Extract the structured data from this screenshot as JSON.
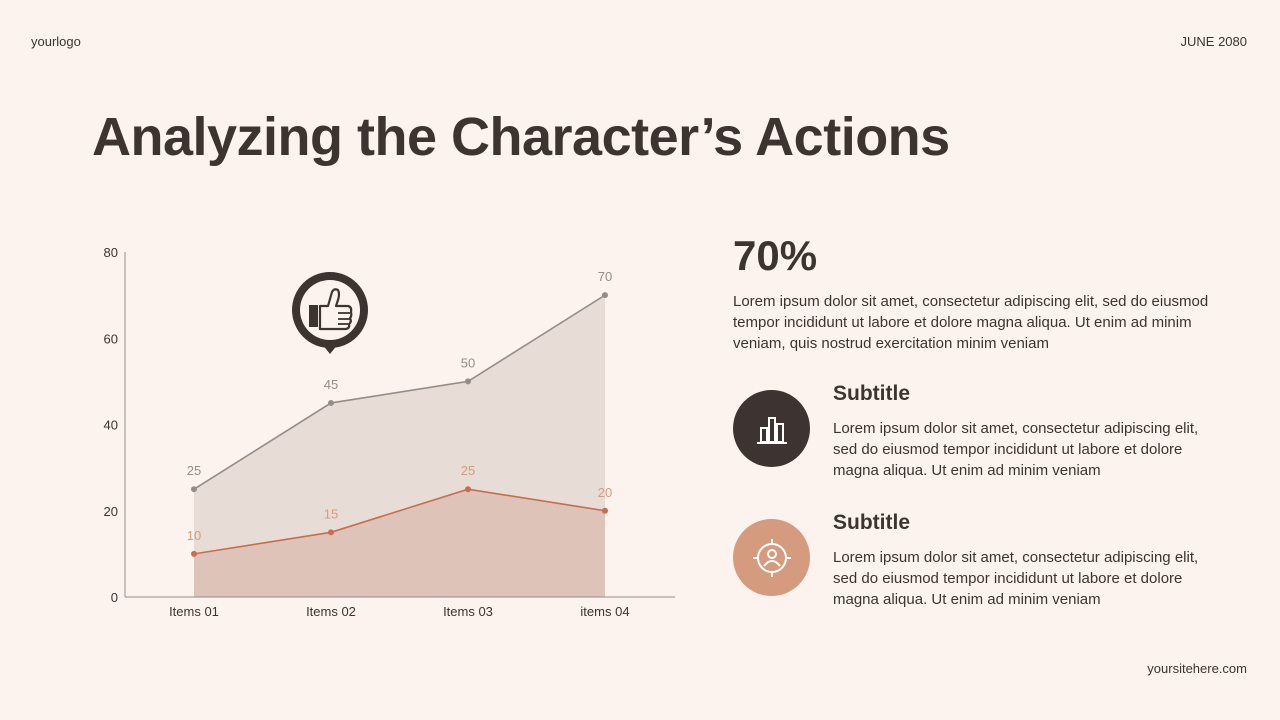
{
  "header": {
    "logo": "yourlogo",
    "date": "JUNE 2080"
  },
  "footer": {
    "site": "yoursitehere.com"
  },
  "title": "Analyzing the Character’s Actions",
  "stat": {
    "value": "70%",
    "description": "Lorem ipsum dolor sit amet, consectetur adipiscing elit, sed do eiusmod tempor incididunt ut labore et dolore magna aliqua. Ut enim ad minim veniam, quis nostrud exercitation minim veniam"
  },
  "features": [
    {
      "subtitle": "Subtitle",
      "description": "Lorem ipsum dolor sit amet, consectetur adipiscing elit, sed do eiusmod tempor incididunt ut labore et dolore magna aliqua. Ut enim ad minim veniam",
      "icon": "bar-chart-icon",
      "color": "#3d3330"
    },
    {
      "subtitle": "Subtitle",
      "description": "Lorem ipsum dolor sit amet, consectetur adipiscing elit, sed do eiusmod tempor incididunt ut labore et dolore magna aliqua. Ut enim ad minim veniam",
      "icon": "target-person-icon",
      "color": "#d49b7f"
    }
  ],
  "chart_data": {
    "type": "area",
    "categories": [
      "Items 01",
      "Items 02",
      "Items 03",
      "items 04"
    ],
    "series": [
      {
        "values": [
          25,
          45,
          50,
          70
        ],
        "color": "#958c86",
        "fill": "#e7dcd6"
      },
      {
        "values": [
          10,
          15,
          25,
          20
        ],
        "color": "#c76e4c",
        "fill": "#dcc0b3"
      }
    ],
    "ylim": [
      0,
      80
    ],
    "yticks": [
      0,
      20,
      40,
      60,
      80
    ],
    "grid": false,
    "legend": "none",
    "annotation_icon": "thumbs-up-icon"
  }
}
